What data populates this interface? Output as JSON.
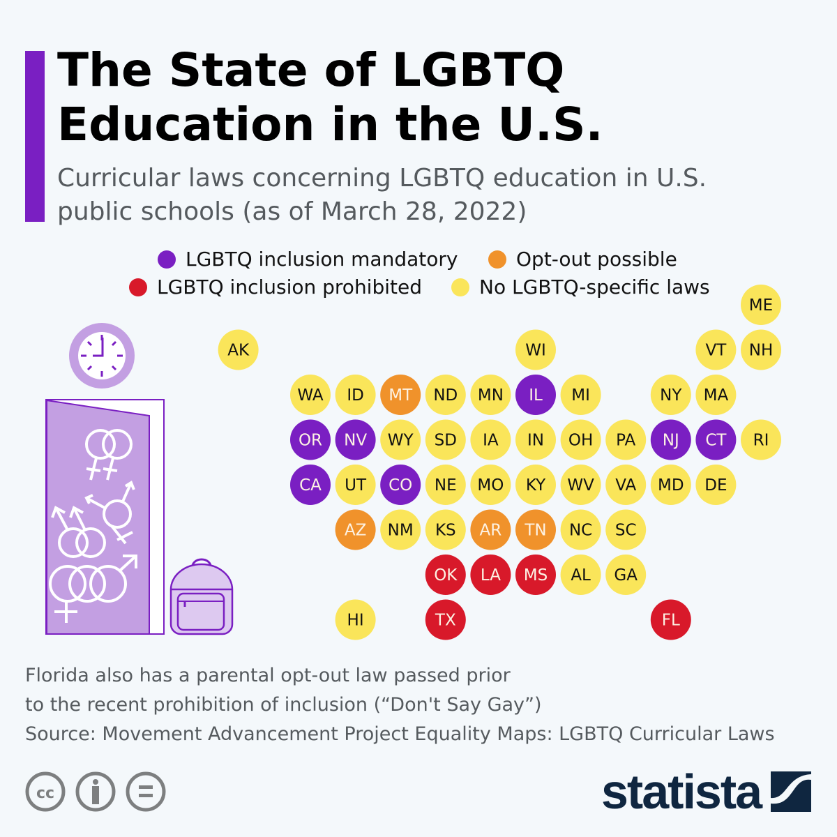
{
  "title": "The State of LGBTQ Education in the U.S.",
  "subtitle": "Curricular laws concerning LGBTQ education in U.S. public schools (as of March 28, 2022)",
  "legend": [
    {
      "key": "mandatory",
      "label": "LGBTQ inclusion mandatory",
      "color": "#7a1fc2"
    },
    {
      "key": "optout",
      "label": "Opt-out possible",
      "color": "#f0922b"
    },
    {
      "key": "prohibited",
      "label": "LGBTQ inclusion prohibited",
      "color": "#d8192a"
    },
    {
      "key": "none",
      "label": "No LGBTQ-specific laws",
      "color": "#fae55a"
    }
  ],
  "chart_data": {
    "type": "tile-map",
    "states": [
      {
        "code": "ME",
        "category": "none"
      },
      {
        "code": "AK",
        "category": "none"
      },
      {
        "code": "WI",
        "category": "none"
      },
      {
        "code": "VT",
        "category": "none"
      },
      {
        "code": "NH",
        "category": "none"
      },
      {
        "code": "WA",
        "category": "none"
      },
      {
        "code": "ID",
        "category": "none"
      },
      {
        "code": "MT",
        "category": "optout"
      },
      {
        "code": "ND",
        "category": "none"
      },
      {
        "code": "MN",
        "category": "none"
      },
      {
        "code": "IL",
        "category": "mandatory"
      },
      {
        "code": "MI",
        "category": "none"
      },
      {
        "code": "NY",
        "category": "none"
      },
      {
        "code": "MA",
        "category": "none"
      },
      {
        "code": "OR",
        "category": "mandatory"
      },
      {
        "code": "NV",
        "category": "mandatory"
      },
      {
        "code": "WY",
        "category": "none"
      },
      {
        "code": "SD",
        "category": "none"
      },
      {
        "code": "IA",
        "category": "none"
      },
      {
        "code": "IN",
        "category": "none"
      },
      {
        "code": "OH",
        "category": "none"
      },
      {
        "code": "PA",
        "category": "none"
      },
      {
        "code": "NJ",
        "category": "mandatory"
      },
      {
        "code": "CT",
        "category": "mandatory"
      },
      {
        "code": "RI",
        "category": "none"
      },
      {
        "code": "CA",
        "category": "mandatory"
      },
      {
        "code": "UT",
        "category": "none"
      },
      {
        "code": "CO",
        "category": "mandatory"
      },
      {
        "code": "NE",
        "category": "none"
      },
      {
        "code": "MO",
        "category": "none"
      },
      {
        "code": "KY",
        "category": "none"
      },
      {
        "code": "WV",
        "category": "none"
      },
      {
        "code": "VA",
        "category": "none"
      },
      {
        "code": "MD",
        "category": "none"
      },
      {
        "code": "DE",
        "category": "none"
      },
      {
        "code": "AZ",
        "category": "optout"
      },
      {
        "code": "NM",
        "category": "none"
      },
      {
        "code": "KS",
        "category": "none"
      },
      {
        "code": "AR",
        "category": "optout"
      },
      {
        "code": "TN",
        "category": "optout"
      },
      {
        "code": "NC",
        "category": "none"
      },
      {
        "code": "SC",
        "category": "none"
      },
      {
        "code": "OK",
        "category": "prohibited"
      },
      {
        "code": "LA",
        "category": "prohibited"
      },
      {
        "code": "MS",
        "category": "prohibited"
      },
      {
        "code": "AL",
        "category": "none"
      },
      {
        "code": "GA",
        "category": "none"
      },
      {
        "code": "HI",
        "category": "none"
      },
      {
        "code": "TX",
        "category": "prohibited"
      },
      {
        "code": "FL",
        "category": "prohibited"
      }
    ]
  },
  "notes": [
    "Florida also has a parental opt-out law passed prior",
    "to the recent prohibition of inclusion (“Don't Say Gay”)",
    "Source: Movement Advancement Project Equality Maps: LGBTQ Curricular Laws"
  ],
  "footer": {
    "brand": "statista",
    "license_icons": [
      "cc-icon",
      "attribution-icon",
      "no-derivatives-icon"
    ]
  }
}
